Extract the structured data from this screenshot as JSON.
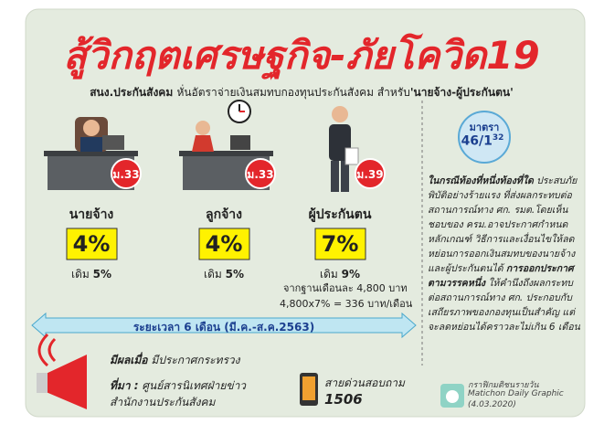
{
  "title": "สู้วิกฤตเศรษฐกิจ-ภัยโควิด19",
  "subtitle": {
    "lead": "สนง.ประกันสังคม",
    "text": "หั่นอัตราจ่ายเงินสมทบกองทุนประกันสังคม สำหรับ",
    "highlight": "'นายจ้าง-ผู้ประกันตน'"
  },
  "groups": [
    {
      "badge": "ม.33",
      "label": "นายจ้าง",
      "rate": "4%",
      "old_label": "เดิม",
      "old_rate": "5%"
    },
    {
      "badge": "ม.33",
      "label": "ลูกจ้าง",
      "rate": "4%",
      "old_label": "เดิม",
      "old_rate": "5%"
    },
    {
      "badge": "ม.39",
      "label": "ผู้ประกันตน",
      "rate": "7%",
      "old_label": "เดิม",
      "old_rate": "9%"
    }
  ],
  "calculation": {
    "line1": "จากฐานเดือนละ 4,800 บาท",
    "line2": "4,800x7% = 336 บาท/เดือน"
  },
  "period": "ระยะเวลา 6 เดือน (มี.ค.-ส.ค.2563)",
  "law": {
    "heading": "มาตรา",
    "number": "46/1",
    "superscript": "32",
    "intro": "ในกรณีท้องที่หนึ่งท้องที่ใด",
    "body1": "ประสบภัยพิบัติอย่างร้ายแรง ที่ส่งผลกระทบต่อสถานการณ์ทาง ศก. รมต.โดยเห็นชอบของ ครม.อาจประกาศกำหนดหลักเกณฑ์ วิธีการและเงื่อนไขให้ลดหย่อนการออกเงินสมทบของนายจ้างและผู้ประกันตนได้",
    "emphasis": "การออกประกาศตามวรรคหนึ่ง",
    "body2": "ให้คำนึงถึงผลกระทบต่อสถานการณ์ทาง ศก. ประกอบกับเสถียรภาพของกองทุนเป็นสำคัญ แต่จะลดหย่อนได้คราวละไม่เกิน 6 เดือน"
  },
  "effective": {
    "label": "มีผลเมื่อ",
    "text": "มีประกาศกระทรวง"
  },
  "source": {
    "label": "ที่มา :",
    "line1": "ศูนย์สารนิเทศฝ่ายข่าว",
    "line2": "สำนักงานประกันสังคม"
  },
  "hotline": {
    "label": "สายด่วนสอบถาม",
    "number": "1506"
  },
  "credit": {
    "thai": "กราฟิกมติชนรายวัน",
    "english": "Matichon Daily Graphic",
    "date": "(4.03.2020)"
  }
}
